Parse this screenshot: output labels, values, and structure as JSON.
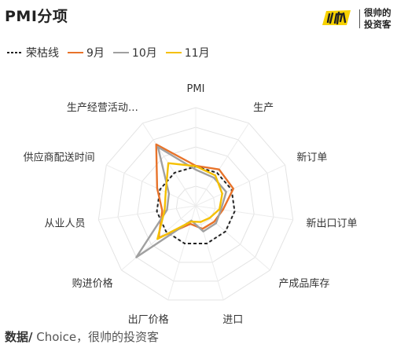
{
  "header": {
    "title": "PMI分项",
    "logo_text_top": "很帅的",
    "logo_text_bottom": "投资客"
  },
  "legend": [
    {
      "label": "荣枯线",
      "color": "#222222",
      "style": "dashed"
    },
    {
      "label": "9月",
      "color": "#e8732a",
      "style": "solid"
    },
    {
      "label": "10月",
      "color": "#a0a0a0",
      "style": "solid"
    },
    {
      "label": "11月",
      "color": "#f5c000",
      "style": "solid"
    }
  ],
  "chart_data": {
    "type": "radar",
    "title": "PMI分项",
    "categories": [
      "PMI",
      "生产",
      "新订单",
      "新出口订单",
      "产成品库存",
      "进口",
      "出厂价格",
      "购进价格",
      "从业人员",
      "供应商配送时间",
      "生产经营活动…"
    ],
    "rmin": 40,
    "rmax": 65,
    "grid_levels": 5,
    "grid": true,
    "legend_position": "top-left",
    "series": [
      {
        "name": "荣枯线",
        "color": "#222222",
        "dashed": true,
        "values": [
          50,
          50,
          50,
          50,
          50,
          50,
          50,
          50,
          50,
          50,
          50
        ]
      },
      {
        "name": "9月",
        "color": "#e8732a",
        "values": [
          50.2,
          51.0,
          50.5,
          47.0,
          46.2,
          46.1,
          44.8,
          52.5,
          48.6,
          50.8,
          58.6
        ]
      },
      {
        "name": "10月",
        "color": "#a0a0a0",
        "values": [
          49.2,
          48.5,
          48.5,
          46.5,
          46.8,
          46.8,
          43.9,
          60.0,
          47.4,
          47.5,
          57.8
        ]
      },
      {
        "name": "11月",
        "color": "#f5c000",
        "values": [
          50.1,
          49.2,
          47.4,
          46.1,
          44.7,
          44.3,
          44.2,
          52.9,
          48.0,
          48.4,
          52.9
        ]
      }
    ]
  },
  "footer": {
    "source_label": "数据/",
    "source_text": " Choice，很帅的投资客"
  }
}
